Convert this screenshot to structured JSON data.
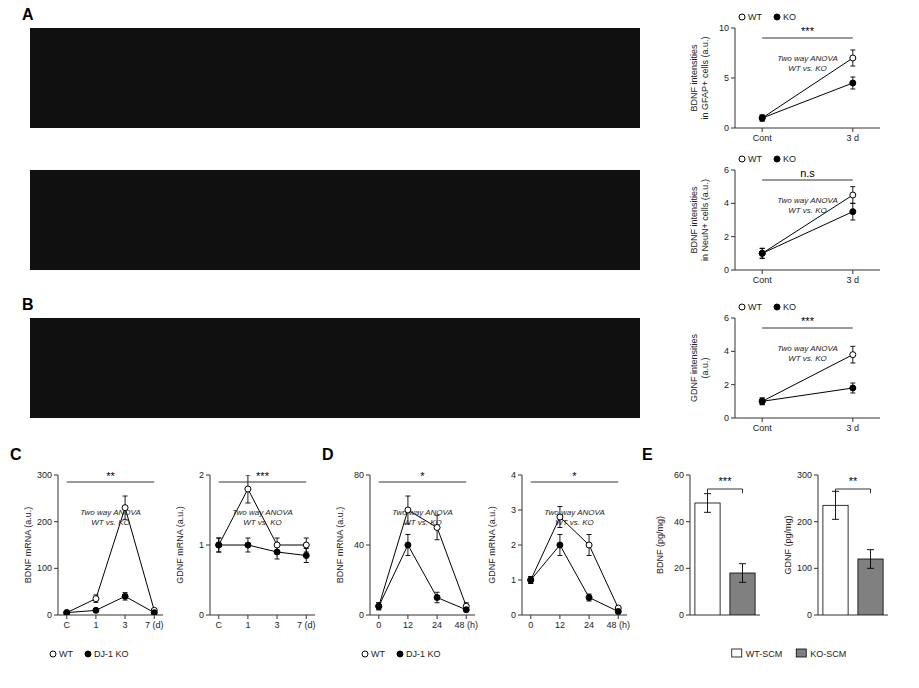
{
  "chart_data": [
    {
      "type": "line",
      "title": "A",
      "ylabel": "BDNF intensities\nin GFAP+ cells (a.u.)",
      "categories": [
        "Cont",
        "3 d"
      ],
      "series": [
        {
          "name": "WT",
          "color": "white",
          "marker": "circle",
          "values": [
            1.0,
            7.0
          ],
          "errors": [
            0.3,
            0.8
          ]
        },
        {
          "name": "KO",
          "color": "black",
          "marker": "circle",
          "values": [
            1.0,
            4.5
          ],
          "errors": [
            0.3,
            0.6
          ]
        }
      ],
      "ylim": [
        0,
        10
      ],
      "yticks": [
        0,
        5,
        10
      ],
      "grid": false,
      "legend": "upper left",
      "annotations": [
        {
          "type": "bracket",
          "text": "***"
        },
        {
          "type": "note",
          "text": "Two way ANOVA\nWT vs. KO"
        }
      ]
    },
    {
      "type": "line",
      "ylabel": "BDNF intensities\nin NeuN+ cells (a.u.)",
      "categories": [
        "Cont",
        "3 d"
      ],
      "series": [
        {
          "name": "WT",
          "color": "white",
          "marker": "circle",
          "values": [
            1.0,
            4.5
          ],
          "errors": [
            0.3,
            0.5
          ]
        },
        {
          "name": "KO",
          "color": "black",
          "marker": "circle",
          "values": [
            1.0,
            3.5
          ],
          "errors": [
            0.3,
            0.5
          ]
        }
      ],
      "ylim": [
        0,
        6
      ],
      "yticks": [
        0,
        2,
        4,
        6
      ],
      "grid": false,
      "legend": "upper left",
      "annotations": [
        {
          "type": "bracket",
          "text": "n.s"
        },
        {
          "type": "note",
          "text": "Two way ANOVA\nWT vs. KO"
        }
      ]
    },
    {
      "type": "line",
      "title": "B",
      "ylabel": "GDNF intensities\n(a.u.)",
      "categories": [
        "Cont",
        "3 d"
      ],
      "series": [
        {
          "name": "WT",
          "color": "white",
          "marker": "circle",
          "values": [
            1.0,
            3.8
          ],
          "errors": [
            0.2,
            0.5
          ]
        },
        {
          "name": "KO",
          "color": "black",
          "marker": "circle",
          "values": [
            1.0,
            1.8
          ],
          "errors": [
            0.2,
            0.3
          ]
        }
      ],
      "ylim": [
        0,
        6
      ],
      "yticks": [
        0,
        2,
        4,
        6
      ],
      "grid": false,
      "legend": "upper left",
      "annotations": [
        {
          "type": "bracket",
          "text": "***"
        },
        {
          "type": "note",
          "text": "Two way ANOVA\nWT vs. KO"
        }
      ]
    },
    {
      "type": "line",
      "title": "C",
      "ylabel": "BDNF mRNA (a.u.)",
      "categories": [
        "C",
        "1",
        "3",
        "7 (d)"
      ],
      "series": [
        {
          "name": "WT",
          "color": "white",
          "marker": "circle",
          "values": [
            5,
            35,
            230,
            10
          ],
          "errors": [
            2,
            8,
            25,
            3
          ]
        },
        {
          "name": "DJ-1 KO",
          "color": "black",
          "marker": "circle",
          "values": [
            5,
            10,
            40,
            5
          ],
          "errors": [
            2,
            3,
            8,
            2
          ]
        }
      ],
      "ylim": [
        0,
        300
      ],
      "yticks": [
        0,
        100,
        200,
        300
      ],
      "grid": false,
      "legend": "bottom",
      "annotations": [
        {
          "type": "bracket",
          "text": "**"
        },
        {
          "type": "note",
          "text": "Two way ANOVA\nWT vs. KO"
        }
      ]
    },
    {
      "type": "line",
      "ylabel": "GDNF mRNA (a.u.)",
      "categories": [
        "C",
        "1",
        "3",
        "7 (d)"
      ],
      "series": [
        {
          "color": "white",
          "marker": "circle",
          "values": [
            1.0,
            1.8,
            1.0,
            1.0
          ],
          "errors": [
            0.1,
            0.2,
            0.1,
            0.1
          ]
        },
        {
          "color": "black",
          "marker": "circle",
          "values": [
            1.0,
            1.0,
            0.9,
            0.85
          ],
          "errors": [
            0.1,
            0.1,
            0.1,
            0.1
          ]
        }
      ],
      "ylim": [
        0,
        2
      ],
      "yticks": [
        0,
        1,
        2
      ],
      "grid": false,
      "annotations": [
        {
          "type": "bracket",
          "text": "***"
        },
        {
          "type": "note",
          "text": "Two way ANOVA\nWT vs. KO"
        }
      ]
    },
    {
      "type": "line",
      "title": "D",
      "ylabel": "BDNF mRNA (a.u.)",
      "categories": [
        "0",
        "12",
        "24",
        "48 (h)"
      ],
      "series": [
        {
          "name": "WT",
          "color": "white",
          "marker": "circle",
          "values": [
            5,
            60,
            50,
            5
          ],
          "errors": [
            2,
            8,
            7,
            2
          ]
        },
        {
          "name": "DJ-1 KO",
          "color": "black",
          "marker": "circle",
          "values": [
            5,
            40,
            10,
            3
          ],
          "errors": [
            2,
            6,
            3,
            1
          ]
        }
      ],
      "ylim": [
        0,
        80
      ],
      "yticks": [
        0,
        40,
        80
      ],
      "grid": false,
      "legend": "bottom",
      "annotations": [
        {
          "type": "bracket",
          "text": "*"
        },
        {
          "type": "note",
          "text": "Two way ANOVA\nWT vs. KO"
        }
      ]
    },
    {
      "type": "line",
      "ylabel": "GDNF mRNA (a.u.)",
      "categories": [
        "0",
        "12",
        "24",
        "48 (h)"
      ],
      "series": [
        {
          "color": "white",
          "marker": "circle",
          "values": [
            1.0,
            2.8,
            2.0,
            0.2
          ],
          "errors": [
            0.1,
            0.3,
            0.3,
            0.05
          ]
        },
        {
          "color": "black",
          "marker": "circle",
          "values": [
            1.0,
            2.0,
            0.5,
            0.1
          ],
          "errors": [
            0.1,
            0.3,
            0.1,
            0.05
          ]
        }
      ],
      "ylim": [
        0,
        4
      ],
      "yticks": [
        0,
        1,
        2,
        3,
        4
      ],
      "grid": false,
      "annotations": [
        {
          "type": "bracket",
          "text": "*"
        },
        {
          "type": "note",
          "text": "Two way ANOVA\nWT vs. KO"
        }
      ]
    },
    {
      "type": "bar",
      "title": "E",
      "ylabel": "BDNF (pg/mg)",
      "categories": [
        "WT-SCM",
        "KO-SCM"
      ],
      "values": [
        48,
        18
      ],
      "errors": [
        4,
        4
      ],
      "colors": [
        "white",
        "#808080"
      ],
      "ylim": [
        0,
        60
      ],
      "yticks": [
        0,
        20,
        40,
        60
      ],
      "grid": false,
      "legend": "bottom",
      "tick_labels": "y",
      "annotations": [
        {
          "type": "bracket",
          "text": "***"
        }
      ]
    },
    {
      "type": "bar",
      "ylabel": "GDNF (pg/mg)",
      "categories": [
        "WT-SCM",
        "KO-SCM"
      ],
      "values": [
        235,
        120
      ],
      "errors": [
        30,
        20
      ],
      "colors": [
        "white",
        "#808080"
      ],
      "ylim": [
        0,
        300
      ],
      "yticks": [
        0,
        100,
        200,
        300
      ],
      "grid": false,
      "tick_labels": "y",
      "annotations": [
        {
          "type": "bracket",
          "text": "**"
        }
      ]
    }
  ]
}
